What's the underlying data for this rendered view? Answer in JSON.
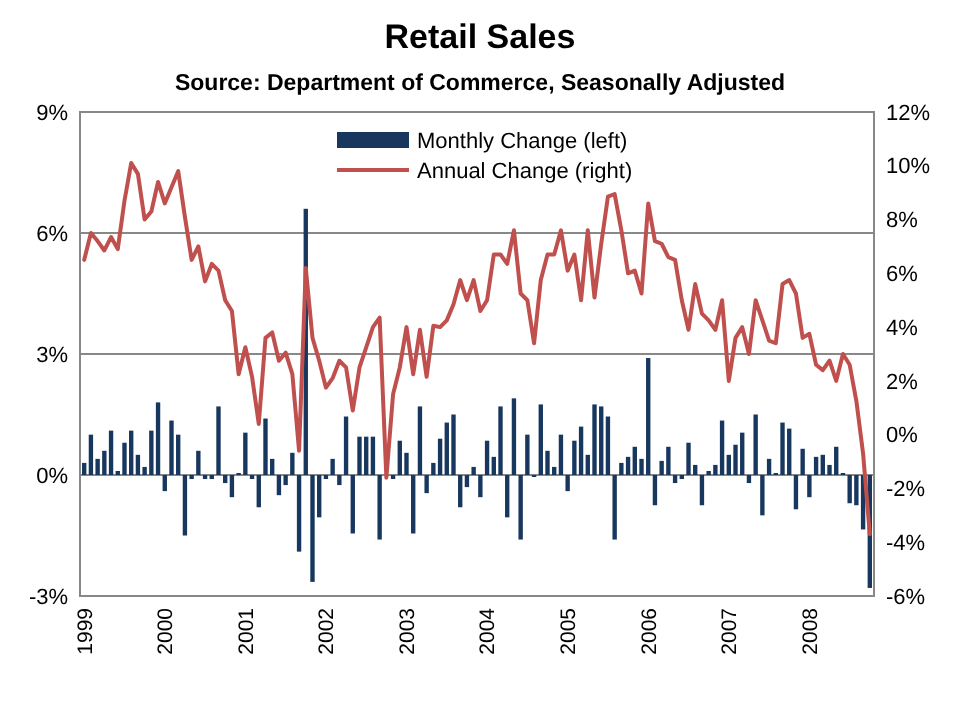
{
  "chart_data": {
    "type": "bar",
    "title": "Retail Sales",
    "subtitle": "Source: Department of Commerce, Seasonally Adjusted",
    "categories": [
      "1999",
      null,
      null,
      null,
      null,
      null,
      null,
      null,
      null,
      null,
      null,
      null,
      "2000",
      null,
      null,
      null,
      null,
      null,
      null,
      null,
      null,
      null,
      null,
      null,
      "2001",
      null,
      null,
      null,
      null,
      null,
      null,
      null,
      null,
      null,
      null,
      null,
      "2002",
      null,
      null,
      null,
      null,
      null,
      null,
      null,
      null,
      null,
      null,
      null,
      "2003",
      null,
      null,
      null,
      null,
      null,
      null,
      null,
      null,
      null,
      null,
      null,
      "2004",
      null,
      null,
      null,
      null,
      null,
      null,
      null,
      null,
      null,
      null,
      null,
      "2005",
      null,
      null,
      null,
      null,
      null,
      null,
      null,
      null,
      null,
      null,
      null,
      "2006",
      null,
      null,
      null,
      null,
      null,
      null,
      null,
      null,
      null,
      null,
      null,
      "2007",
      null,
      null,
      null,
      null,
      null,
      null,
      null,
      null,
      null,
      null,
      null,
      "2008",
      null,
      null,
      null,
      null,
      null,
      null,
      null,
      null,
      null
    ],
    "series": [
      {
        "name": "Monthly Change  (left)",
        "color": "#17375e",
        "values": [
          0.3,
          1.0,
          0.4,
          0.6,
          1.1,
          0.1,
          0.8,
          1.1,
          0.5,
          0.2,
          1.1,
          1.8,
          -0.4,
          1.35,
          1.0,
          -1.5,
          -0.1,
          0.6,
          -0.1,
          -0.1,
          1.7,
          -0.2,
          -0.55,
          0.05,
          1.05,
          -0.1,
          -0.8,
          1.4,
          0.4,
          -0.5,
          -0.25,
          0.55,
          -1.9,
          6.6,
          -2.65,
          -1.05,
          -0.1,
          0.4,
          -0.25,
          1.45,
          -1.45,
          0.95,
          0.95,
          0.95,
          -1.6,
          null,
          -0.1,
          0.85,
          0.55,
          -1.45,
          1.7,
          -0.45,
          0.3,
          0.9,
          1.3,
          1.5,
          -0.8,
          -0.3,
          0.2,
          -0.55,
          0.85,
          0.45,
          1.7,
          -1.05,
          1.9,
          -1.6,
          1.0,
          -0.05,
          1.75,
          0.6,
          0.2,
          1.0,
          -0.4,
          0.85,
          1.2,
          0.5,
          1.75,
          1.7,
          1.45,
          -1.6,
          0.3,
          0.45,
          0.7,
          0.4,
          2.9,
          -0.75,
          0.35,
          0.7,
          -0.2,
          -0.1,
          0.8,
          0.25,
          -0.75,
          0.1,
          0.25,
          1.35,
          0.5,
          0.75,
          1.05,
          -0.2,
          1.5,
          -1.0,
          0.4,
          0.05,
          1.3,
          1.15,
          -0.85,
          0.65,
          -0.55,
          0.45,
          0.5,
          0.25,
          0.7,
          0.05,
          -0.7,
          -0.75,
          -1.35,
          -2.8
        ]
      },
      {
        "name": "Annual Change (right)",
        "type": "line",
        "axis": "y2",
        "color": "#c0504d",
        "values": [
          6.5,
          7.5,
          7.2,
          6.85,
          7.35,
          6.9,
          8.7,
          10.1,
          9.7,
          8.0,
          8.3,
          9.4,
          8.6,
          9.2,
          9.8,
          8.1,
          6.5,
          7.0,
          5.7,
          6.35,
          6.1,
          5.0,
          4.6,
          2.25,
          3.25,
          2.15,
          0.4,
          3.6,
          3.8,
          2.75,
          3.05,
          2.25,
          -0.6,
          6.2,
          3.6,
          2.75,
          1.75,
          2.1,
          2.75,
          2.5,
          0.9,
          2.5,
          3.25,
          4.0,
          4.35,
          -1.6,
          1.5,
          2.5,
          4.0,
          2.25,
          3.9,
          2.15,
          4.05,
          4.0,
          4.25,
          4.85,
          5.75,
          5.0,
          5.75,
          4.6,
          5.0,
          6.7,
          6.7,
          6.35,
          7.6,
          5.25,
          5.0,
          3.4,
          5.75,
          6.7,
          6.7,
          7.6,
          6.1,
          6.7,
          5.0,
          7.6,
          5.1,
          7.1,
          8.85,
          8.95,
          7.6,
          6.0,
          6.1,
          5.25,
          8.6,
          7.2,
          7.1,
          6.6,
          6.5,
          5.0,
          3.9,
          5.6,
          4.5,
          4.25,
          3.9,
          5.0,
          2.0,
          3.6,
          4.0,
          3.0,
          5.0,
          4.25,
          3.5,
          3.4,
          5.6,
          5.75,
          5.25,
          3.6,
          3.75,
          2.6,
          2.4,
          2.75,
          2.0,
          3.0,
          2.6,
          1.25,
          -0.7,
          -3.7
        ]
      }
    ],
    "ylim": [
      -3,
      9
    ],
    "yticks": [
      {
        "value": -3,
        "label": "-3%"
      },
      {
        "value": 0,
        "label": "0%"
      },
      {
        "value": 3,
        "label": "3%"
      },
      {
        "value": 6,
        "label": "6%"
      },
      {
        "value": 9,
        "label": "9%"
      }
    ],
    "y2lim": [
      -6,
      12
    ],
    "y2ticks": [
      {
        "value": -6,
        "label": "-6%"
      },
      {
        "value": -4,
        "label": "-4%"
      },
      {
        "value": -2,
        "label": "-2%"
      },
      {
        "value": 0,
        "label": "0%"
      },
      {
        "value": 2,
        "label": "2%"
      },
      {
        "value": 4,
        "label": "4%"
      },
      {
        "value": 6,
        "label": "6%"
      },
      {
        "value": 8,
        "label": "8%"
      },
      {
        "value": 10,
        "label": "10%"
      },
      {
        "value": 12,
        "label": "12%"
      }
    ],
    "grid": "y",
    "legend": "top"
  }
}
